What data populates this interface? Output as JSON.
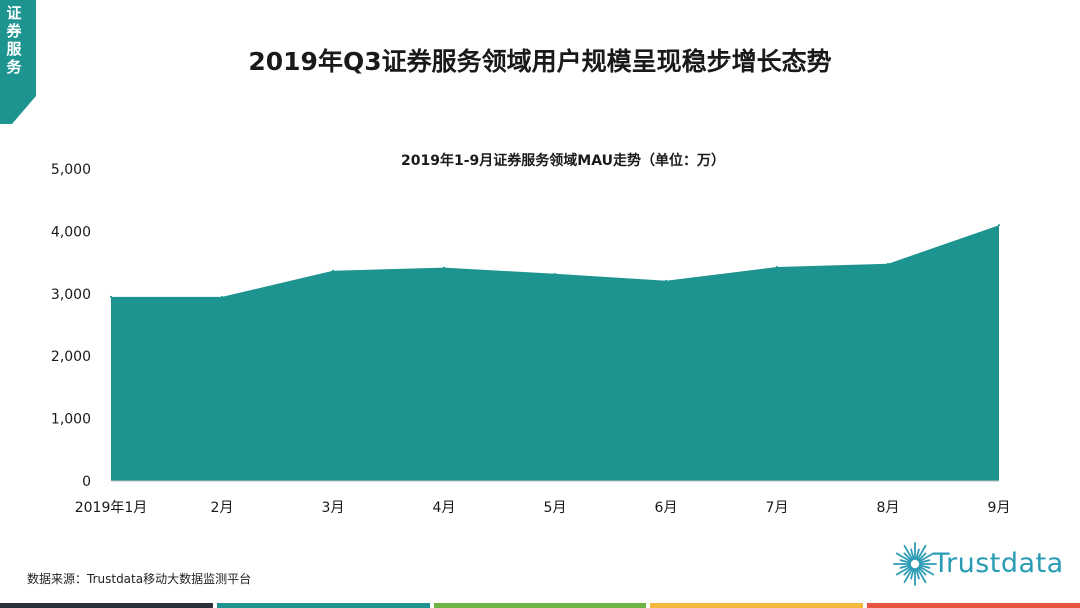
{
  "side_tag": "证券服务",
  "page_title": "2019年Q3证券服务领域用户规模呈现稳步增长态势",
  "chart_data": {
    "type": "area",
    "title": "2019年1-9月证券服务领域MAU走势（单位：万）",
    "categories": [
      "2019年1月",
      "2月",
      "3月",
      "4月",
      "5月",
      "6月",
      "7月",
      "8月",
      "9月"
    ],
    "series": [
      {
        "name": "MAU",
        "values": [
          2950,
          2950,
          3370,
          3420,
          3320,
          3210,
          3430,
          3480,
          4100
        ]
      }
    ],
    "ylim": [
      0,
      5000
    ],
    "yticks": [
      0,
      1000,
      2000,
      3000,
      4000,
      5000
    ],
    "ytick_labels": [
      "0",
      "1,000",
      "2,000",
      "3,000",
      "4,000",
      "5,000"
    ],
    "fill_color": "#1e9490"
  },
  "source_text": "数据来源：Trustdata移动大数据监测平台",
  "logo_text": "Trustdata",
  "colors": {
    "accent": "#1e9490",
    "logo": "#2a9bb5",
    "footer": [
      "#2b2f3a",
      "#1e9490",
      "#6cb644",
      "#f4b93c",
      "#e8543f"
    ]
  }
}
